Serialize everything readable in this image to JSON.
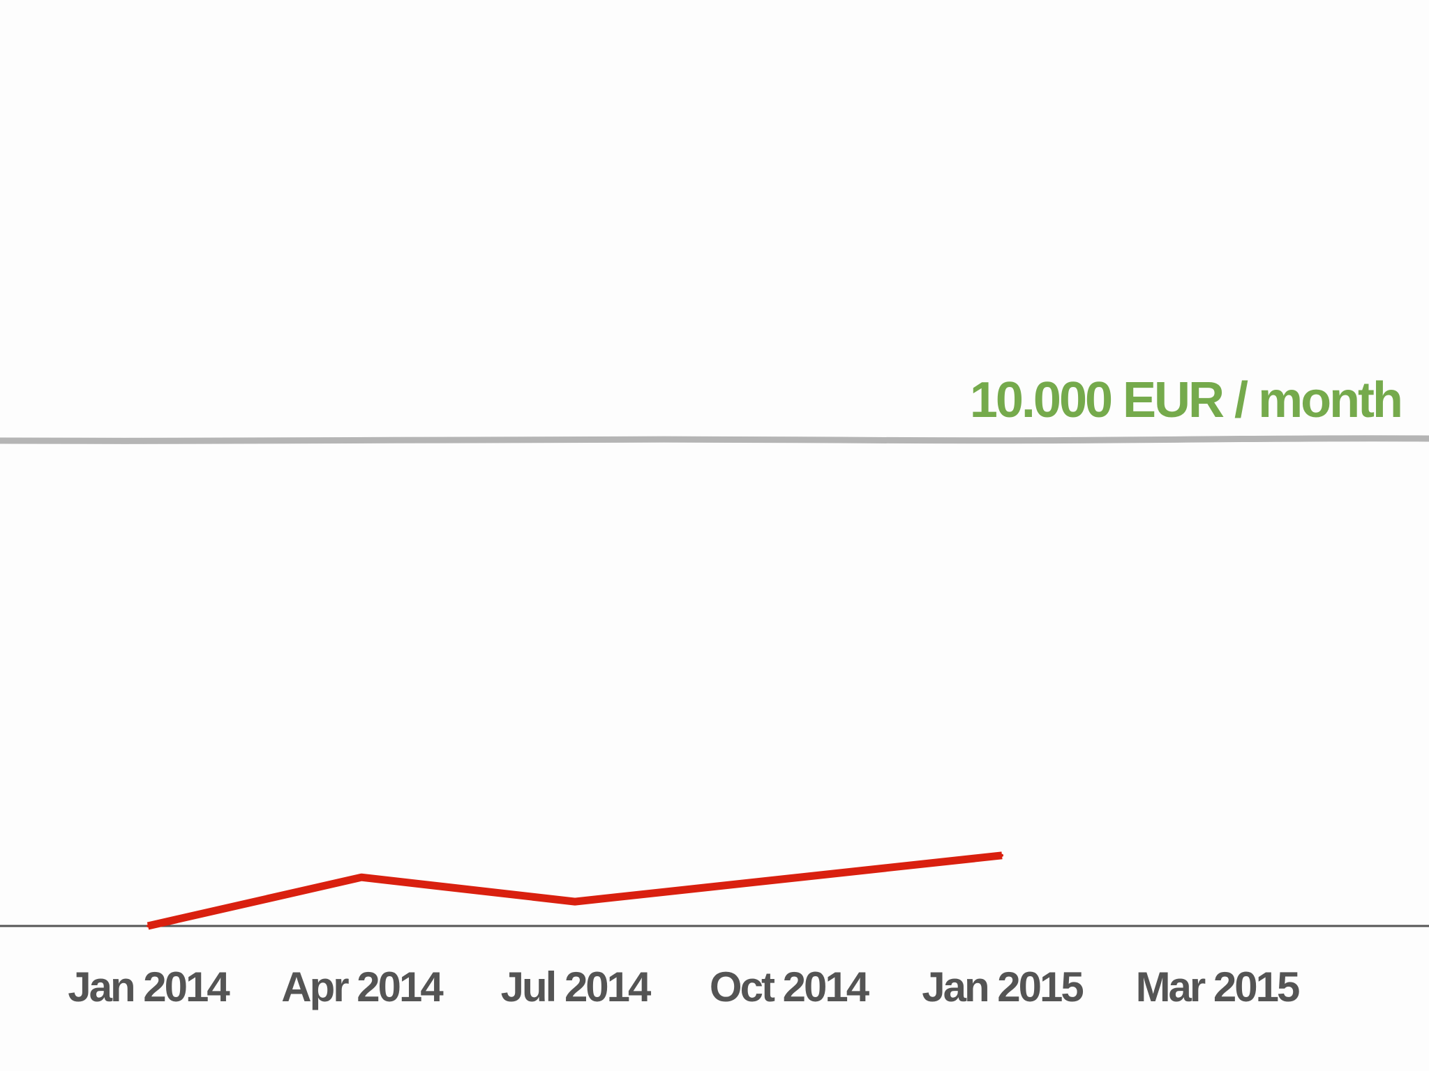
{
  "chart_data": {
    "type": "line",
    "title": "",
    "xlabel": "",
    "ylabel": "",
    "x_ticks": [
      "Jan 2014",
      "Apr 2014",
      "Jul 2014",
      "Oct 2014",
      "Jan 2015",
      "Mar 2015"
    ],
    "ylim": [
      0,
      10000
    ],
    "grid": false,
    "series": [
      {
        "x": [
          "Jan 2014",
          "Apr 2014",
          "Jul 2014",
          "Jan 2015"
        ],
        "values": [
          0,
          1000,
          500,
          1450
        ],
        "color": "#d9200f"
      }
    ],
    "target_line": {
      "value": 10000,
      "label": "10.000 EUR / month",
      "line_color": "#b5b5b5",
      "label_color": "#75aa4c"
    },
    "colors": {
      "axis": "#555555",
      "tick_text": "#545454"
    }
  }
}
